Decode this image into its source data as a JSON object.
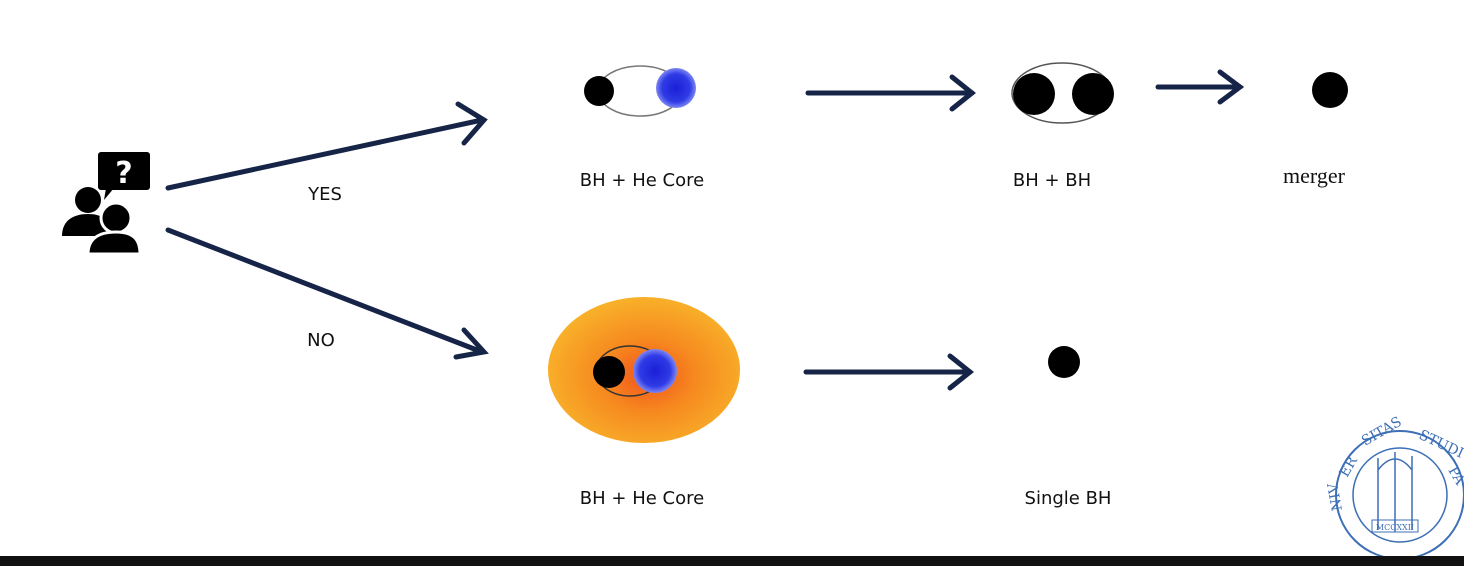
{
  "colors": {
    "arrow": "#152447",
    "black_hole": "#000000",
    "he_core": "#2a35e0",
    "envelope": "#f6a21a",
    "seal": "#3c6fb5"
  },
  "icons": {
    "question": "people-question-icon",
    "seal": "university-seal-icon"
  },
  "branch_labels": {
    "yes": "YES",
    "no": "NO"
  },
  "yes_path": {
    "stage1_label": "BH + He Core",
    "stage2_label": "BH + BH",
    "stage3_label": "merger"
  },
  "no_path": {
    "stage1_label": "BH + He Core",
    "stage2_label": "Single BH"
  },
  "question_icon_text": "?",
  "seal_text": "MCCXXII"
}
